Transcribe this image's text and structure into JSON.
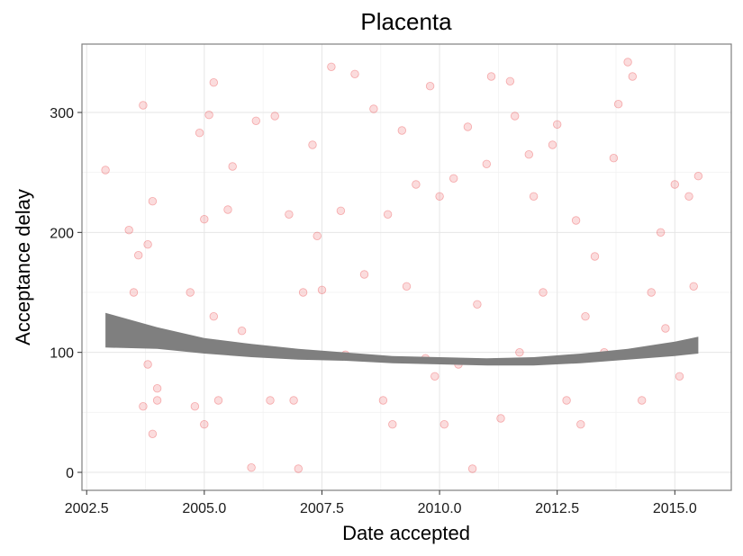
{
  "chart_data": {
    "type": "scatter",
    "title": "Placenta",
    "xlabel": "Date accepted",
    "ylabel": "Acceptance delay",
    "xlim": [
      2002.4,
      2016.2
    ],
    "ylim": [
      -15,
      357
    ],
    "xticks": [
      2002.5,
      2005.0,
      2007.5,
      2010.0,
      2012.5,
      2015.0
    ],
    "xtick_labels": [
      "2002.5",
      "2005.0",
      "2007.5",
      "2010.0",
      "2012.5",
      "2015.0"
    ],
    "yticks": [
      0,
      100,
      200,
      300
    ],
    "ytick_labels": [
      "0",
      "100",
      "200",
      "300"
    ],
    "grid": true,
    "legend": "none",
    "point_color": "#e8282b",
    "smooth_color": "#7f7f7f",
    "x": [
      2002.9,
      2003.4,
      2003.5,
      2003.6,
      2003.7,
      2003.7,
      2003.8,
      2003.8,
      2003.9,
      2003.9,
      2004.0,
      2004.0,
      2004.7,
      2004.8,
      2004.9,
      2005.0,
      2005.0,
      2005.1,
      2005.2,
      2005.2,
      2005.3,
      2005.5,
      2005.6,
      2005.8,
      2006.0,
      2006.1,
      2006.2,
      2006.4,
      2006.5,
      2006.8,
      2006.9,
      2007.0,
      2007.1,
      2007.3,
      2007.4,
      2007.5,
      2007.7,
      2007.9,
      2008.0,
      2008.2,
      2008.4,
      2008.6,
      2008.8,
      2008.9,
      2009.0,
      2009.2,
      2009.3,
      2009.5,
      2009.7,
      2009.8,
      2009.9,
      2010.0,
      2010.1,
      2010.3,
      2010.4,
      2010.6,
      2010.7,
      2010.8,
      2011.0,
      2011.1,
      2011.3,
      2011.5,
      2011.6,
      2011.7,
      2011.9,
      2012.0,
      2012.2,
      2012.4,
      2012.5,
      2012.7,
      2012.9,
      2013.0,
      2013.1,
      2013.3,
      2013.5,
      2013.7,
      2013.8,
      2014.0,
      2014.1,
      2014.3,
      2014.5,
      2014.7,
      2014.8,
      2015.0,
      2015.1,
      2015.3,
      2015.4,
      2015.5
    ],
    "y": [
      252,
      202,
      150,
      181,
      306,
      55,
      90,
      190,
      226,
      32,
      70,
      60,
      150,
      55,
      283,
      211,
      40,
      298,
      130,
      325,
      60,
      219,
      255,
      118,
      4,
      293,
      102,
      60,
      297,
      215,
      60,
      3,
      150,
      273,
      197,
      152,
      338,
      218,
      98,
      332,
      165,
      303,
      60,
      215,
      40,
      285,
      155,
      240,
      95,
      322,
      80,
      230,
      40,
      245,
      90,
      288,
      3,
      140,
      257,
      330,
      45,
      326,
      297,
      100,
      265,
      230,
      150,
      273,
      290,
      60,
      210,
      40,
      130,
      180,
      100,
      262,
      307,
      342,
      330,
      60,
      150,
      200,
      120,
      240,
      80,
      230,
      155,
      247
    ],
    "smooth_x": [
      2002.9,
      2004.0,
      2005.0,
      2006.0,
      2007.0,
      2008.0,
      2009.0,
      2010.0,
      2011.0,
      2012.0,
      2013.0,
      2014.0,
      2015.0,
      2015.5
    ],
    "smooth_lower": [
      104,
      103,
      99,
      96,
      94,
      93,
      91,
      90,
      89,
      89,
      91,
      94,
      97,
      99
    ],
    "smooth_upper": [
      133,
      121,
      112,
      107,
      103,
      100,
      97,
      96,
      95,
      96,
      99,
      103,
      109,
      113
    ]
  }
}
